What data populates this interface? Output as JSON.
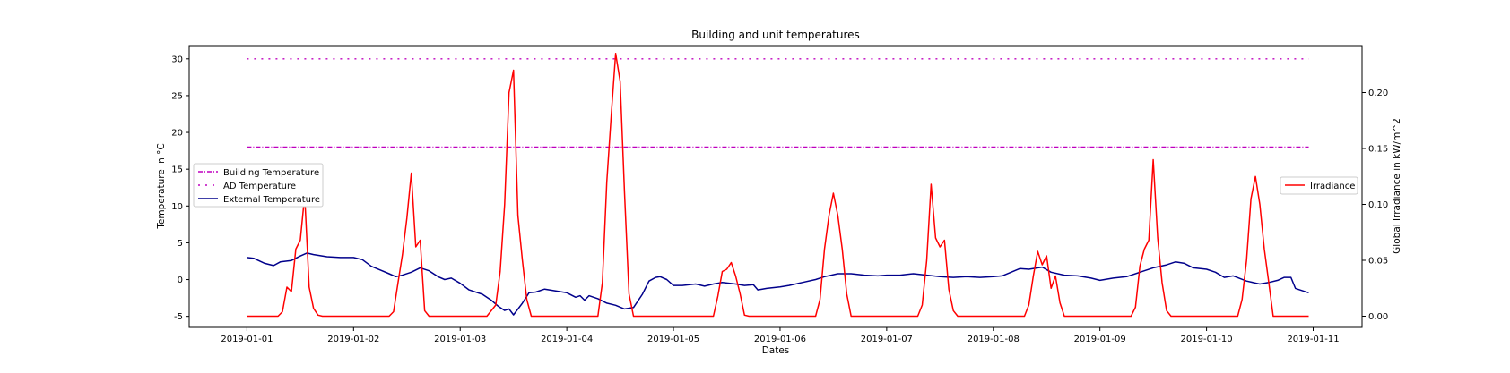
{
  "chart_data": {
    "type": "line",
    "title": "Building and unit temperatures",
    "xlabel": "Dates",
    "ylabel_left": "Temperature in °C",
    "ylabel_right": "Global Irradiance in kW/m^2",
    "x_ticks": [
      "2019-01-01",
      "2019-01-02",
      "2019-01-03",
      "2019-01-04",
      "2019-01-05",
      "2019-01-06",
      "2019-01-07",
      "2019-01-08",
      "2019-01-09",
      "2019-01-10",
      "2019-01-11"
    ],
    "y_left_ticks": [
      -5,
      0,
      5,
      10,
      15,
      20,
      25,
      30
    ],
    "y_right_ticks": [
      "0.00",
      "0.05",
      "0.10",
      "0.15",
      "0.20"
    ],
    "xlim": [
      "2018-12-31T11:00",
      "2019-01-11T11:00"
    ],
    "ylim_left": [
      -6.5,
      31.8
    ],
    "ylim_right": [
      -0.01,
      0.242
    ],
    "grid": false,
    "left_legend_placement": "center-left",
    "right_legend_placement": "center-right",
    "colors": {
      "building": "#bf00bf",
      "ad": "#bf00bf",
      "external": "#00008b",
      "irradiance": "#ff0000"
    },
    "series": [
      {
        "name": "Building Temperature",
        "axis": "left",
        "style": "dash-dot",
        "constant": 18,
        "x_start": "2019-01-01T00:00",
        "x_end": "2019-01-10T23:00"
      },
      {
        "name": "AD Temperature",
        "axis": "left",
        "style": "dash-dot-sparse",
        "constant": 30,
        "x_start": "2019-01-01T00:00",
        "x_end": "2019-01-10T23:00"
      },
      {
        "name": "External Temperature",
        "axis": "left",
        "style": "solid",
        "points": [
          [
            "2019-01-01T00:00",
            3.0
          ],
          [
            "2019-01-01T01:30",
            2.9
          ],
          [
            "2019-01-01T04:00",
            2.2
          ],
          [
            "2019-01-01T06:00",
            1.9
          ],
          [
            "2019-01-01T07:30",
            2.4
          ],
          [
            "2019-01-01T10:00",
            2.6
          ],
          [
            "2019-01-01T12:00",
            3.2
          ],
          [
            "2019-01-01T13:30",
            3.6
          ],
          [
            "2019-01-01T15:00",
            3.4
          ],
          [
            "2019-01-01T18:00",
            3.1
          ],
          [
            "2019-01-01T21:00",
            3.0
          ],
          [
            "2019-01-02T00:00",
            3.0
          ],
          [
            "2019-01-02T02:00",
            2.7
          ],
          [
            "2019-01-02T04:00",
            1.8
          ],
          [
            "2019-01-02T06:00",
            1.3
          ],
          [
            "2019-01-02T08:00",
            0.8
          ],
          [
            "2019-01-02T09:30",
            0.4
          ],
          [
            "2019-01-02T11:00",
            0.6
          ],
          [
            "2019-01-02T13:00",
            1.0
          ],
          [
            "2019-01-02T15:00",
            1.6
          ],
          [
            "2019-01-02T17:00",
            1.2
          ],
          [
            "2019-01-02T19:00",
            0.4
          ],
          [
            "2019-01-02T20:30",
            0.0
          ],
          [
            "2019-01-02T22:00",
            0.2
          ],
          [
            "2019-01-03T00:00",
            -0.5
          ],
          [
            "2019-01-03T02:00",
            -1.4
          ],
          [
            "2019-01-03T05:00",
            -2.0
          ],
          [
            "2019-01-03T07:00",
            -2.8
          ],
          [
            "2019-01-03T08:30",
            -3.6
          ],
          [
            "2019-01-03T10:00",
            -4.2
          ],
          [
            "2019-01-03T11:00",
            -4.0
          ],
          [
            "2019-01-03T12:00",
            -4.8
          ],
          [
            "2019-01-03T14:00",
            -3.2
          ],
          [
            "2019-01-03T15:30",
            -1.8
          ],
          [
            "2019-01-03T17:00",
            -1.7
          ],
          [
            "2019-01-03T19:00",
            -1.3
          ],
          [
            "2019-01-03T21:00",
            -1.5
          ],
          [
            "2019-01-04T00:00",
            -1.8
          ],
          [
            "2019-01-04T02:00",
            -2.4
          ],
          [
            "2019-01-04T03:00",
            -2.2
          ],
          [
            "2019-01-04T04:00",
            -2.8
          ],
          [
            "2019-01-04T05:00",
            -2.2
          ],
          [
            "2019-01-04T07:00",
            -2.6
          ],
          [
            "2019-01-04T09:00",
            -3.2
          ],
          [
            "2019-01-04T11:00",
            -3.5
          ],
          [
            "2019-01-04T13:00",
            -4.0
          ],
          [
            "2019-01-04T15:00",
            -3.8
          ],
          [
            "2019-01-04T17:00",
            -2.0
          ],
          [
            "2019-01-04T18:30",
            -0.2
          ],
          [
            "2019-01-04T20:00",
            0.3
          ],
          [
            "2019-01-04T21:00",
            0.4
          ],
          [
            "2019-01-04T22:30",
            0.0
          ],
          [
            "2019-01-05T00:00",
            -0.8
          ],
          [
            "2019-01-05T02:00",
            -0.8
          ],
          [
            "2019-01-05T05:00",
            -0.6
          ],
          [
            "2019-01-05T07:00",
            -0.9
          ],
          [
            "2019-01-05T09:00",
            -0.6
          ],
          [
            "2019-01-05T11:00",
            -0.4
          ],
          [
            "2019-01-05T14:00",
            -0.6
          ],
          [
            "2019-01-05T16:00",
            -0.8
          ],
          [
            "2019-01-05T18:00",
            -0.7
          ],
          [
            "2019-01-05T19:00",
            -1.4
          ],
          [
            "2019-01-05T21:00",
            -1.2
          ],
          [
            "2019-01-06T00:00",
            -1.0
          ],
          [
            "2019-01-06T02:00",
            -0.8
          ],
          [
            "2019-01-06T05:00",
            -0.4
          ],
          [
            "2019-01-06T08:00",
            0.0
          ],
          [
            "2019-01-06T10:00",
            0.4
          ],
          [
            "2019-01-06T13:00",
            0.8
          ],
          [
            "2019-01-06T16:00",
            0.8
          ],
          [
            "2019-01-06T19:00",
            0.6
          ],
          [
            "2019-01-06T22:00",
            0.5
          ],
          [
            "2019-01-07T00:00",
            0.6
          ],
          [
            "2019-01-07T03:00",
            0.6
          ],
          [
            "2019-01-07T06:00",
            0.8
          ],
          [
            "2019-01-07T09:00",
            0.6
          ],
          [
            "2019-01-07T12:00",
            0.4
          ],
          [
            "2019-01-07T15:00",
            0.3
          ],
          [
            "2019-01-07T18:00",
            0.4
          ],
          [
            "2019-01-07T21:00",
            0.3
          ],
          [
            "2019-01-08T00:00",
            0.4
          ],
          [
            "2019-01-08T02:00",
            0.5
          ],
          [
            "2019-01-08T04:00",
            1.0
          ],
          [
            "2019-01-08T06:00",
            1.5
          ],
          [
            "2019-01-08T08:00",
            1.4
          ],
          [
            "2019-01-08T11:00",
            1.7
          ],
          [
            "2019-01-08T13:00",
            1.0
          ],
          [
            "2019-01-08T16:00",
            0.6
          ],
          [
            "2019-01-08T19:00",
            0.5
          ],
          [
            "2019-01-08T22:00",
            0.2
          ],
          [
            "2019-01-09T00:00",
            -0.1
          ],
          [
            "2019-01-09T03:00",
            0.2
          ],
          [
            "2019-01-09T06:00",
            0.4
          ],
          [
            "2019-01-09T09:00",
            1.0
          ],
          [
            "2019-01-09T12:00",
            1.6
          ],
          [
            "2019-01-09T15:00",
            2.0
          ],
          [
            "2019-01-09T17:00",
            2.4
          ],
          [
            "2019-01-09T19:00",
            2.2
          ],
          [
            "2019-01-09T21:00",
            1.6
          ],
          [
            "2019-01-10T00:00",
            1.4
          ],
          [
            "2019-01-10T02:00",
            1.0
          ],
          [
            "2019-01-10T04:00",
            0.3
          ],
          [
            "2019-01-10T06:00",
            0.5
          ],
          [
            "2019-01-10T09:00",
            -0.2
          ],
          [
            "2019-01-10T12:00",
            -0.6
          ],
          [
            "2019-01-10T14:00",
            -0.4
          ],
          [
            "2019-01-10T16:00",
            -0.1
          ],
          [
            "2019-01-10T17:30",
            0.3
          ],
          [
            "2019-01-10T19:00",
            0.3
          ],
          [
            "2019-01-10T20:00",
            -1.2
          ],
          [
            "2019-01-10T21:00",
            -1.4
          ],
          [
            "2019-01-10T23:00",
            -1.8
          ]
        ]
      },
      {
        "name": "Irradiance",
        "axis": "right",
        "style": "solid",
        "points": [
          [
            "2019-01-01T00:00",
            0.0
          ],
          [
            "2019-01-01T07:00",
            0.0
          ],
          [
            "2019-01-01T08:00",
            0.004
          ],
          [
            "2019-01-01T09:00",
            0.026
          ],
          [
            "2019-01-01T10:00",
            0.022
          ],
          [
            "2019-01-01T11:00",
            0.06
          ],
          [
            "2019-01-01T12:00",
            0.068
          ],
          [
            "2019-01-01T13:00",
            0.108
          ],
          [
            "2019-01-01T14:00",
            0.026
          ],
          [
            "2019-01-01T15:00",
            0.007
          ],
          [
            "2019-01-01T16:00",
            0.001
          ],
          [
            "2019-01-01T17:00",
            0.0
          ],
          [
            "2019-01-02T08:00",
            0.0
          ],
          [
            "2019-01-02T09:00",
            0.004
          ],
          [
            "2019-01-02T10:00",
            0.03
          ],
          [
            "2019-01-02T11:00",
            0.055
          ],
          [
            "2019-01-02T12:00",
            0.088
          ],
          [
            "2019-01-02T13:00",
            0.128
          ],
          [
            "2019-01-02T14:00",
            0.062
          ],
          [
            "2019-01-02T15:00",
            0.068
          ],
          [
            "2019-01-02T16:00",
            0.005
          ],
          [
            "2019-01-02T17:00",
            0.0
          ],
          [
            "2019-01-03T06:00",
            0.0
          ],
          [
            "2019-01-03T08:00",
            0.01
          ],
          [
            "2019-01-03T09:00",
            0.04
          ],
          [
            "2019-01-03T10:00",
            0.1
          ],
          [
            "2019-01-03T11:00",
            0.2
          ],
          [
            "2019-01-03T12:00",
            0.22
          ],
          [
            "2019-01-03T13:00",
            0.09
          ],
          [
            "2019-01-03T14:00",
            0.05
          ],
          [
            "2019-01-03T15:00",
            0.015
          ],
          [
            "2019-01-03T16:00",
            0.0
          ],
          [
            "2019-01-04T07:00",
            0.0
          ],
          [
            "2019-01-04T08:00",
            0.03
          ],
          [
            "2019-01-04T09:00",
            0.12
          ],
          [
            "2019-01-04T10:00",
            0.18
          ],
          [
            "2019-01-04T11:00",
            0.235
          ],
          [
            "2019-01-04T12:00",
            0.21
          ],
          [
            "2019-01-04T13:00",
            0.11
          ],
          [
            "2019-01-04T14:00",
            0.02
          ],
          [
            "2019-01-04T15:00",
            0.0
          ],
          [
            "2019-01-05T09:00",
            0.0
          ],
          [
            "2019-01-05T10:00",
            0.018
          ],
          [
            "2019-01-05T11:00",
            0.04
          ],
          [
            "2019-01-05T12:00",
            0.042
          ],
          [
            "2019-01-05T13:00",
            0.048
          ],
          [
            "2019-01-05T14:00",
            0.036
          ],
          [
            "2019-01-05T15:00",
            0.02
          ],
          [
            "2019-01-05T16:00",
            0.001
          ],
          [
            "2019-01-05T17:00",
            0.0
          ],
          [
            "2019-01-06T08:00",
            0.0
          ],
          [
            "2019-01-06T09:00",
            0.015
          ],
          [
            "2019-01-06T10:00",
            0.06
          ],
          [
            "2019-01-06T11:00",
            0.09
          ],
          [
            "2019-01-06T12:00",
            0.11
          ],
          [
            "2019-01-06T13:00",
            0.09
          ],
          [
            "2019-01-06T14:00",
            0.06
          ],
          [
            "2019-01-06T15:00",
            0.02
          ],
          [
            "2019-01-06T16:00",
            0.0
          ],
          [
            "2019-01-07T07:00",
            0.0
          ],
          [
            "2019-01-07T08:00",
            0.01
          ],
          [
            "2019-01-07T09:00",
            0.05
          ],
          [
            "2019-01-07T10:00",
            0.118
          ],
          [
            "2019-01-07T11:00",
            0.07
          ],
          [
            "2019-01-07T12:00",
            0.062
          ],
          [
            "2019-01-07T13:00",
            0.068
          ],
          [
            "2019-01-07T14:00",
            0.024
          ],
          [
            "2019-01-07T15:00",
            0.005
          ],
          [
            "2019-01-07T16:00",
            0.0
          ],
          [
            "2019-01-08T07:00",
            0.0
          ],
          [
            "2019-01-08T08:00",
            0.01
          ],
          [
            "2019-01-08T09:00",
            0.036
          ],
          [
            "2019-01-08T10:00",
            0.058
          ],
          [
            "2019-01-08T11:00",
            0.046
          ],
          [
            "2019-01-08T12:00",
            0.054
          ],
          [
            "2019-01-08T13:00",
            0.025
          ],
          [
            "2019-01-08T14:00",
            0.036
          ],
          [
            "2019-01-08T15:00",
            0.012
          ],
          [
            "2019-01-08T16:00",
            0.0
          ],
          [
            "2019-01-09T07:00",
            0.0
          ],
          [
            "2019-01-09T08:00",
            0.008
          ],
          [
            "2019-01-09T09:00",
            0.045
          ],
          [
            "2019-01-09T10:00",
            0.06
          ],
          [
            "2019-01-09T11:00",
            0.068
          ],
          [
            "2019-01-09T12:00",
            0.14
          ],
          [
            "2019-01-09T13:00",
            0.07
          ],
          [
            "2019-01-09T14:00",
            0.03
          ],
          [
            "2019-01-09T15:00",
            0.005
          ],
          [
            "2019-01-09T16:00",
            0.0
          ],
          [
            "2019-01-10T07:00",
            0.0
          ],
          [
            "2019-01-10T08:00",
            0.015
          ],
          [
            "2019-01-10T09:00",
            0.05
          ],
          [
            "2019-01-10T10:00",
            0.105
          ],
          [
            "2019-01-10T11:00",
            0.125
          ],
          [
            "2019-01-10T12:00",
            0.1
          ],
          [
            "2019-01-10T13:00",
            0.06
          ],
          [
            "2019-01-10T14:00",
            0.03
          ],
          [
            "2019-01-10T15:00",
            0.0
          ],
          [
            "2019-01-10T23:00",
            0.0
          ]
        ]
      }
    ]
  },
  "legend_left": [
    {
      "label": "Building Temperature",
      "key": "building"
    },
    {
      "label": "AD Temperature",
      "key": "ad"
    },
    {
      "label": "External Temperature",
      "key": "external"
    }
  ],
  "legend_right": [
    {
      "label": "Irradiance",
      "key": "irradiance"
    }
  ]
}
